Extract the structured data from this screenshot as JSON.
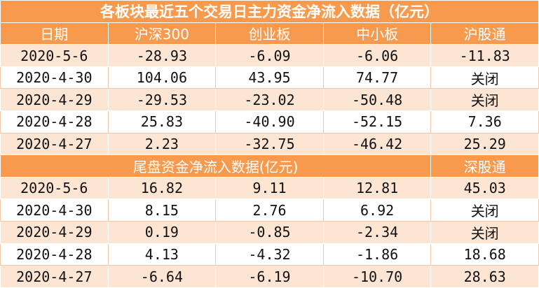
{
  "table": {
    "title": "各板块最近五个交易日主力资金净流入数据（亿元）",
    "header": [
      "日期",
      "沪深300",
      "创业板",
      "中小板",
      "沪股通"
    ],
    "rows": [
      [
        "2020-5-6",
        "-28.93",
        "-6.09",
        "-6.06",
        "-11.83"
      ],
      [
        "2020-4-30",
        "104.06",
        "43.95",
        "74.77",
        "关闭"
      ],
      [
        "2020-4-29",
        "-29.53",
        "-23.02",
        "-50.48",
        "关闭"
      ],
      [
        "2020-4-28",
        "25.83",
        "-40.90",
        "-52.15",
        "7.36"
      ],
      [
        "2020-4-27",
        "2.23",
        "-32.75",
        "-46.42",
        "25.29"
      ]
    ],
    "section": {
      "title": "尾盘资金净流入数据(亿元)",
      "last": "深股通"
    },
    "section_rows": [
      [
        "2020-5-6",
        "16.82",
        "9.11",
        "12.81",
        "45.03"
      ],
      [
        "2020-4-30",
        "8.15",
        "2.76",
        "6.92",
        "关闭"
      ],
      [
        "2020-4-29",
        "0.19",
        "-0.85",
        "-2.34",
        "关闭"
      ],
      [
        "2020-4-28",
        "4.13",
        "-4.32",
        "-1.86",
        "18.68"
      ],
      [
        "2020-4-27",
        "-6.64",
        "-6.19",
        "-10.70",
        "28.63"
      ]
    ]
  }
}
